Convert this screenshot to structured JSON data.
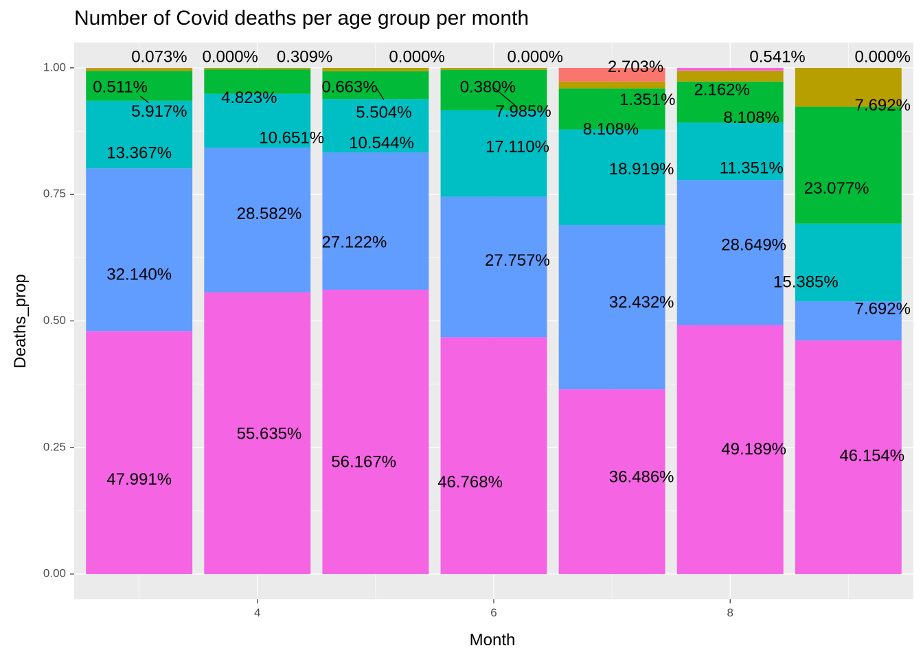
{
  "chart_data": {
    "type": "bar",
    "stacked": true,
    "title": "Number of Covid deaths per age group per month",
    "xlabel": "Month",
    "ylabel": "Deaths_prop",
    "x_ticks": [
      "4",
      "6",
      "8"
    ],
    "y_ticks": [
      "0.00",
      "0.25",
      "0.50",
      "0.75",
      "1.00"
    ],
    "xlim": [
      2.45,
      9.55
    ],
    "ylim": [
      -0.05,
      1.05
    ],
    "legend": "none",
    "grid": true,
    "bars": [
      {
        "month": 3,
        "segments": [
          {
            "color": "#F564E3",
            "value": 0.47991,
            "label": "47.991%"
          },
          {
            "color": "#619CFF",
            "value": 0.3214,
            "label": "32.140%"
          },
          {
            "color": "#00BFC4",
            "value": 0.13367,
            "label": "13.367%"
          },
          {
            "color": "#00BA38",
            "value": 0.05917,
            "label": "5.917%"
          },
          {
            "color": "#B79F00",
            "value": 0.00511,
            "label": "0.511%"
          },
          {
            "color": "#F8766D",
            "value": 0.00073,
            "label": "0.073%"
          }
        ]
      },
      {
        "month": 4,
        "segments": [
          {
            "color": "#F564E3",
            "value": 0.55635,
            "label": "55.635%"
          },
          {
            "color": "#619CFF",
            "value": 0.28582,
            "label": "28.582%"
          },
          {
            "color": "#00BFC4",
            "value": 0.10651,
            "label": "10.651%"
          },
          {
            "color": "#00BA38",
            "value": 0.04823,
            "label": "4.823%"
          },
          {
            "color": "#B79F00",
            "value": 0.00309,
            "label": "0.309%"
          },
          {
            "color": "#F8766D",
            "value": 0.0,
            "label": "0.000%"
          }
        ]
      },
      {
        "month": 5,
        "segments": [
          {
            "color": "#F564E3",
            "value": 0.56167,
            "label": "56.167%"
          },
          {
            "color": "#619CFF",
            "value": 0.27122,
            "label": "27.122%"
          },
          {
            "color": "#00BFC4",
            "value": 0.10544,
            "label": "10.544%"
          },
          {
            "color": "#00BA38",
            "value": 0.05504,
            "label": "5.504%"
          },
          {
            "color": "#B79F00",
            "value": 0.00663,
            "label": "0.663%"
          },
          {
            "color": "#F8766D",
            "value": 0.0,
            "label": "0.000%"
          }
        ]
      },
      {
        "month": 6,
        "segments": [
          {
            "color": "#F564E3",
            "value": 0.46768,
            "label": "46.768%"
          },
          {
            "color": "#619CFF",
            "value": 0.27757,
            "label": "27.757%"
          },
          {
            "color": "#00BFC4",
            "value": 0.1711,
            "label": "17.110%"
          },
          {
            "color": "#00BA38",
            "value": 0.07985,
            "label": "7.985%"
          },
          {
            "color": "#B79F00",
            "value": 0.0038,
            "label": "0.380%"
          },
          {
            "color": "#F8766D",
            "value": 0.0,
            "label": "0.000%"
          }
        ]
      },
      {
        "month": 7,
        "segments": [
          {
            "color": "#F564E3",
            "value": 0.36486,
            "label": "36.486%"
          },
          {
            "color": "#619CFF",
            "value": 0.32432,
            "label": "32.432%"
          },
          {
            "color": "#00BFC4",
            "value": 0.18919,
            "label": "18.919%"
          },
          {
            "color": "#00BA38",
            "value": 0.08108,
            "label": "8.108%"
          },
          {
            "color": "#B79F00",
            "value": 0.01351,
            "label": "1.351%"
          },
          {
            "color": "#F8766D",
            "value": 0.02703,
            "label": "2.703%"
          }
        ]
      },
      {
        "month": 8,
        "segments": [
          {
            "color": "#F564E3",
            "value": 0.49189,
            "label": "49.189%"
          },
          {
            "color": "#619CFF",
            "value": 0.28649,
            "label": "28.649%"
          },
          {
            "color": "#00BFC4",
            "value": 0.11351,
            "label": "11.351%"
          },
          {
            "color": "#00BA38",
            "value": 0.08108,
            "label": "8.108%"
          },
          {
            "color": "#B79F00",
            "value": 0.02162,
            "label": "2.162%"
          },
          {
            "color": "#F564E3",
            "value": 0.00541,
            "label": "0.541%"
          }
        ]
      },
      {
        "month": 9,
        "segments": [
          {
            "color": "#F564E3",
            "value": 0.46154,
            "label": "46.154%"
          },
          {
            "color": "#619CFF",
            "value": 0.07692,
            "label": "7.692%"
          },
          {
            "color": "#00BFC4",
            "value": 0.15385,
            "label": "15.385%"
          },
          {
            "color": "#00BA38",
            "value": 0.23077,
            "label": "23.077%"
          },
          {
            "color": "#B79F00",
            "value": 0.07692,
            "label": "7.692%"
          },
          {
            "color": "#F8766D",
            "value": 0.0,
            "label": "0.000%"
          }
        ]
      }
    ]
  }
}
